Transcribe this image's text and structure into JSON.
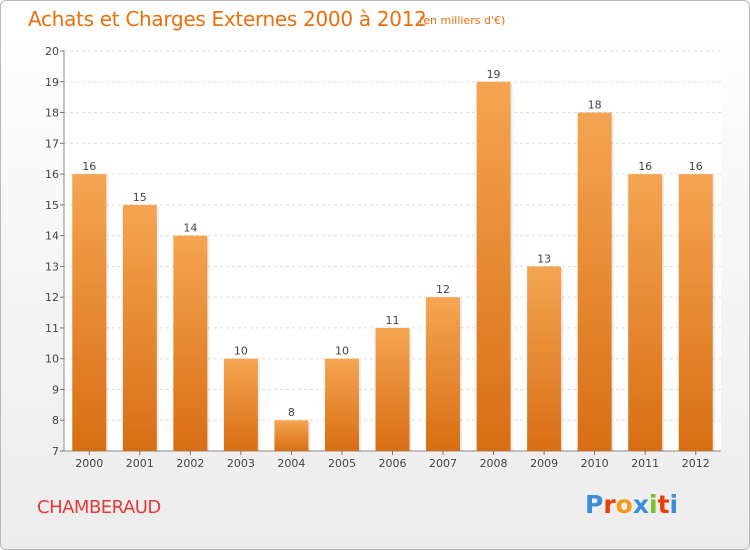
{
  "title": "Achats et Charges Externes 2000 à 2012",
  "subtitle": "(en milliers d'€)",
  "commune": "CHAMBERAUD",
  "logo": {
    "letters": [
      "P",
      "r",
      "o",
      "x",
      "i",
      "t",
      "i"
    ],
    "colors": [
      "#3b8fd9",
      "#e8400c",
      "#f29b1b",
      "#3b8fd9",
      "#7bbf2a",
      "#e8400c",
      "#3b8fd9"
    ]
  },
  "colors": {
    "bar_top": "#f5a552",
    "bar_bottom": "#d86e14",
    "accent": "#e8700c"
  },
  "chart_data": {
    "type": "bar",
    "title": "Achats et Charges Externes 2000 à 2012",
    "subtitle": "(en milliers d'€)",
    "categories": [
      "2000",
      "2001",
      "2002",
      "2003",
      "2004",
      "2005",
      "2006",
      "2007",
      "2008",
      "2009",
      "2010",
      "2011",
      "2012"
    ],
    "values": [
      16,
      15,
      14,
      10,
      8,
      10,
      11,
      12,
      19,
      13,
      18,
      16,
      16
    ],
    "ylim": [
      7,
      20
    ],
    "yticks": [
      7,
      8,
      9,
      10,
      11,
      12,
      13,
      14,
      15,
      16,
      17,
      18,
      19,
      20
    ],
    "grid": true
  }
}
